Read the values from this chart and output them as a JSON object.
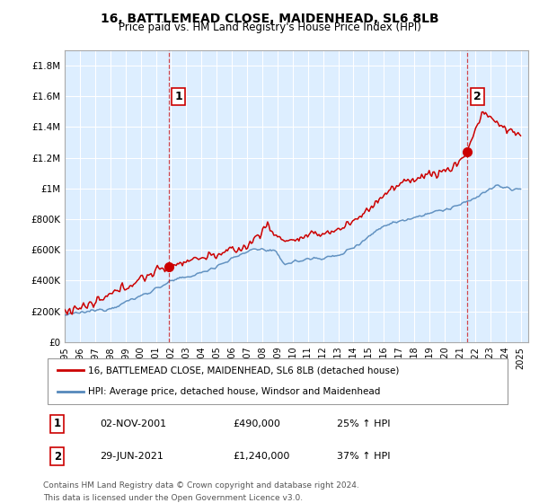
{
  "title": "16, BATTLEMEAD CLOSE, MAIDENHEAD, SL6 8LB",
  "subtitle": "Price paid vs. HM Land Registry's House Price Index (HPI)",
  "legend_line1": "16, BATTLEMEAD CLOSE, MAIDENHEAD, SL6 8LB (detached house)",
  "legend_line2": "HPI: Average price, detached house, Windsor and Maidenhead",
  "annotation1_label": "1",
  "annotation1_date": "02-NOV-2001",
  "annotation1_price": "£490,000",
  "annotation1_hpi": "25% ↑ HPI",
  "annotation1_year": 2001.84,
  "annotation1_value": 490000,
  "annotation2_label": "2",
  "annotation2_date": "29-JUN-2021",
  "annotation2_price": "£1,240,000",
  "annotation2_hpi": "37% ↑ HPI",
  "annotation2_year": 2021.49,
  "annotation2_value": 1240000,
  "red_color": "#cc0000",
  "blue_color": "#5588bb",
  "plot_bg_color": "#ddeeff",
  "background_color": "#ffffff",
  "grid_color": "#ffffff",
  "ylim_min": 0,
  "ylim_max": 1900000,
  "xlim_min": 1995.0,
  "xlim_max": 2025.5,
  "footer1": "Contains HM Land Registry data © Crown copyright and database right 2024.",
  "footer2": "This data is licensed under the Open Government Licence v3.0."
}
